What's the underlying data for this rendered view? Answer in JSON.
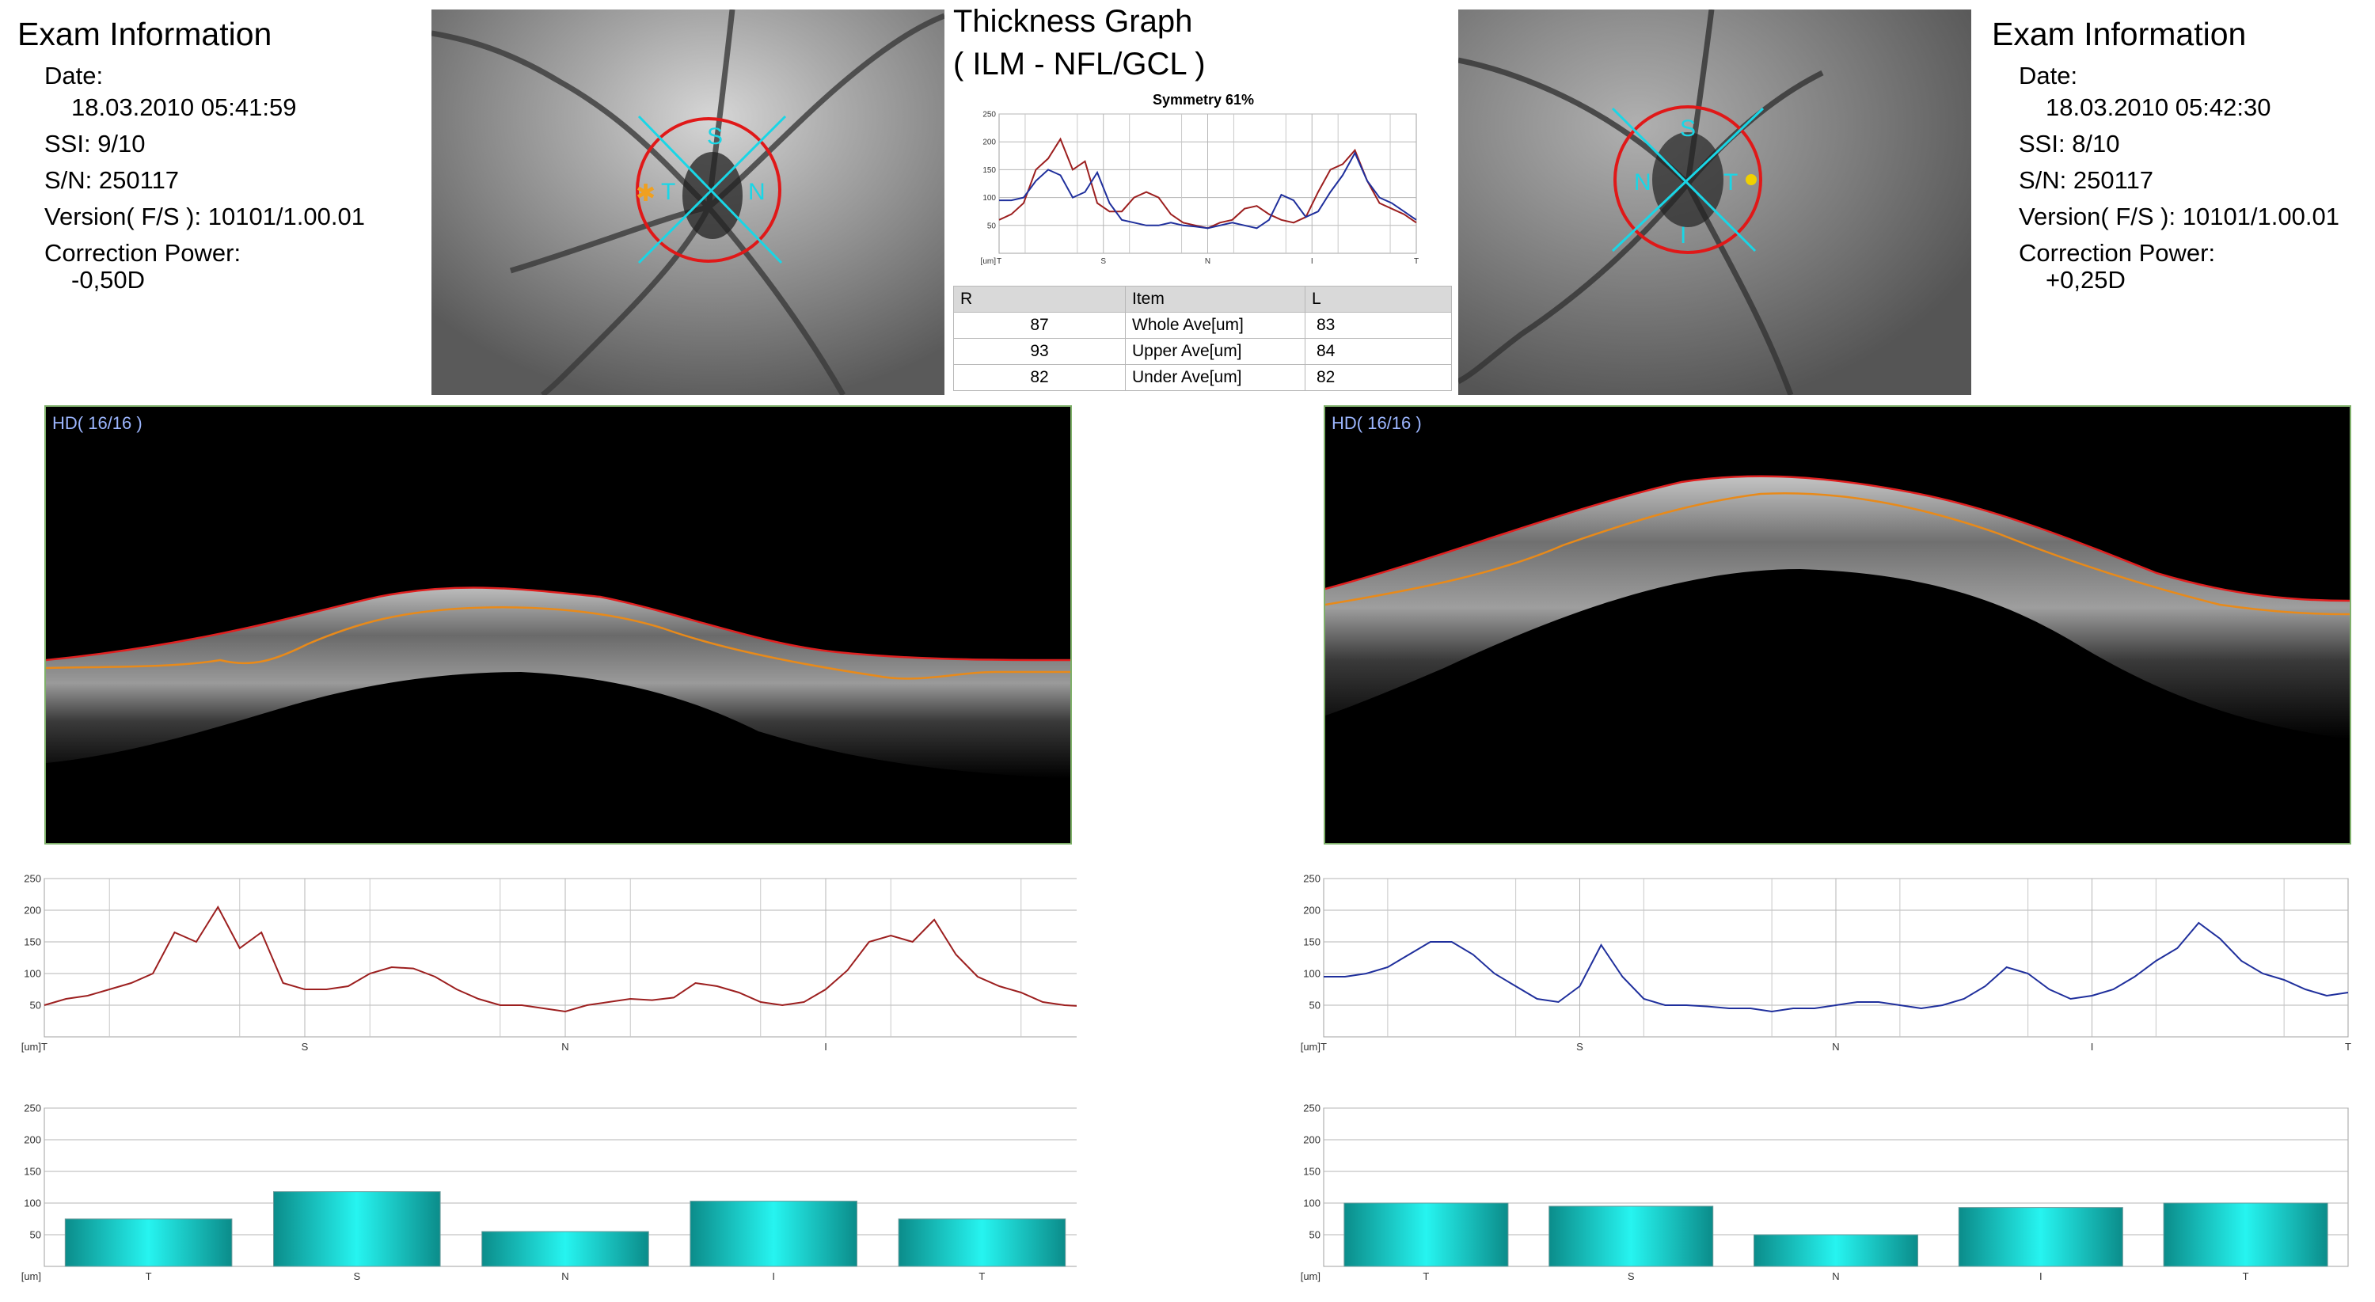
{
  "left_eye": {
    "info": {
      "title": "Exam Information",
      "date_label": "Date:",
      "date_value": "18.03.2010 05:41:59",
      "ssi": "SSI:  9/10",
      "sn": "S/N: 250117",
      "version": "Version( F/S ): 10101/1.00.01",
      "correction_label": "Correction Power:",
      "correction_value": "-0,50D"
    },
    "fundus": {
      "labels": [
        "S",
        "T",
        "N"
      ]
    },
    "bscan_label": "HD( 16/16 )"
  },
  "right_eye": {
    "info": {
      "title": "Exam Information",
      "date_label": "Date:",
      "date_value": "18.03.2010 05:42:30",
      "ssi": "SSI:  8/10",
      "sn": "S/N: 250117",
      "version": "Version( F/S ): 10101/1.00.01",
      "correction_label": "Correction Power:",
      "correction_value": "+0,25D"
    },
    "fundus": {
      "labels": [
        "S",
        "N",
        "T",
        "I"
      ]
    },
    "bscan_label": "HD( 16/16 )"
  },
  "thickness_graph": {
    "title_line1": "Thickness Graph",
    "title_line2": "( ILM - NFL/GCL )"
  },
  "summary_table": {
    "headers": [
      "R",
      "Item",
      "L"
    ],
    "rows": [
      [
        "87",
        "Whole Ave[um]",
        "83"
      ],
      [
        "93",
        "Upper Ave[um]",
        "84"
      ],
      [
        "82",
        "Under Ave[um]",
        "82"
      ]
    ]
  },
  "colors": {
    "right_eye_line": "#9c1f1f",
    "left_eye_line": "#1f2f9c",
    "bar": "#17b6b0",
    "ilm": "#e02020",
    "nfl": "#e88a1a",
    "axis_line": "#19d6e6"
  },
  "chart_data": [
    {
      "type": "line",
      "title": "Symmetry 61%",
      "x_ticks": [
        "T",
        "S",
        "N",
        "I",
        "T"
      ],
      "ylabel": "[um]",
      "ylim": [
        0,
        250
      ],
      "yticks": [
        50,
        100,
        150,
        200,
        250
      ],
      "grid": true,
      "series": [
        {
          "color": "#9c1f1f",
          "values": [
            60,
            70,
            90,
            150,
            170,
            205,
            150,
            165,
            90,
            75,
            75,
            100,
            110,
            100,
            70,
            55,
            50,
            45,
            55,
            60,
            80,
            85,
            70,
            60,
            55,
            65,
            110,
            150,
            160,
            185,
            130,
            90,
            80,
            70,
            55
          ]
        },
        {
          "color": "#1f2f9c",
          "values": [
            95,
            95,
            100,
            130,
            150,
            140,
            100,
            110,
            145,
            90,
            60,
            55,
            50,
            50,
            55,
            50,
            48,
            45,
            50,
            55,
            50,
            45,
            60,
            105,
            95,
            65,
            75,
            110,
            140,
            180,
            130,
            100,
            90,
            75,
            60
          ]
        }
      ]
    },
    {
      "type": "line",
      "x_ticks": [
        "T",
        "S",
        "N",
        "I",
        "T"
      ],
      "ylabel": "[um]",
      "ylim": [
        0,
        250
      ],
      "yticks": [
        50,
        100,
        150,
        200,
        250
      ],
      "grid": true,
      "series": [
        {
          "color": "#9c1f1f",
          "values": [
            50,
            60,
            65,
            75,
            85,
            100,
            165,
            150,
            205,
            140,
            165,
            85,
            75,
            75,
            80,
            100,
            110,
            108,
            95,
            75,
            60,
            50,
            50,
            45,
            40,
            50,
            55,
            60,
            58,
            62,
            85,
            80,
            70,
            55,
            50,
            55,
            75,
            105,
            150,
            160,
            150,
            185,
            130,
            95,
            80,
            70,
            55,
            50,
            48
          ]
        }
      ]
    },
    {
      "type": "line",
      "x_ticks": [
        "T",
        "S",
        "N",
        "I",
        "T"
      ],
      "ylabel": "[um]",
      "ylim": [
        0,
        250
      ],
      "yticks": [
        50,
        100,
        150,
        200,
        250
      ],
      "grid": true,
      "series": [
        {
          "color": "#1f2f9c",
          "values": [
            95,
            95,
            100,
            110,
            130,
            150,
            150,
            130,
            100,
            80,
            60,
            55,
            80,
            145,
            95,
            60,
            50,
            50,
            48,
            45,
            45,
            40,
            45,
            45,
            50,
            55,
            55,
            50,
            45,
            50,
            60,
            80,
            110,
            100,
            75,
            60,
            65,
            75,
            95,
            120,
            140,
            180,
            155,
            120,
            100,
            90,
            75,
            65,
            70
          ]
        }
      ]
    },
    {
      "type": "bar",
      "categories": [
        "T",
        "S",
        "N",
        "I",
        "T"
      ],
      "values": [
        75,
        118,
        55,
        103,
        75
      ],
      "ylabel": "[um]",
      "ylim": [
        0,
        250
      ],
      "yticks": [
        50,
        100,
        150,
        200,
        250
      ],
      "grid": true
    },
    {
      "type": "bar",
      "categories": [
        "T",
        "S",
        "N",
        "I",
        "T"
      ],
      "values": [
        100,
        95,
        50,
        93,
        100
      ],
      "ylabel": "[um]",
      "ylim": [
        0,
        250
      ],
      "yticks": [
        50,
        100,
        150,
        200,
        250
      ],
      "grid": true
    }
  ]
}
